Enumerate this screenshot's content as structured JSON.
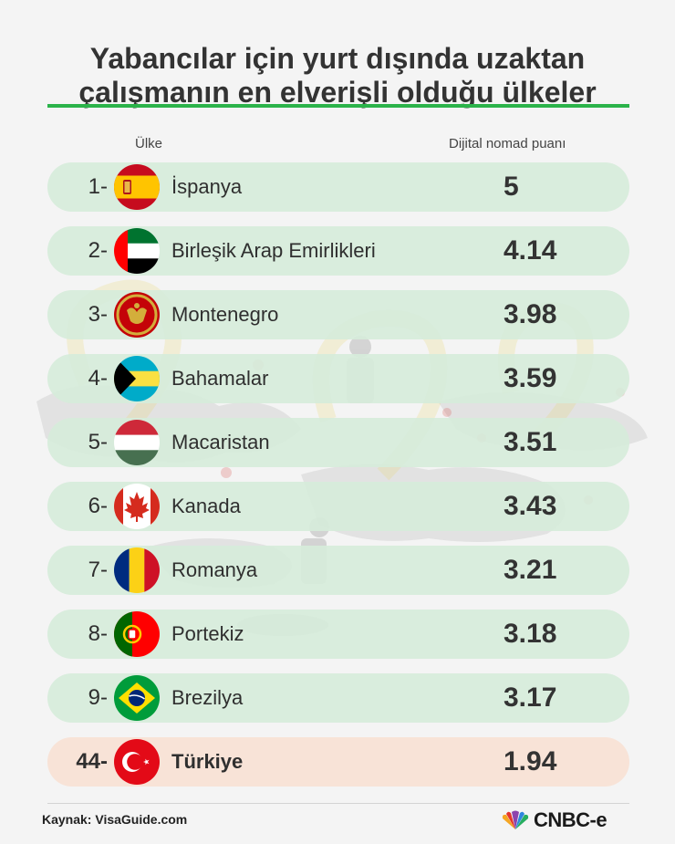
{
  "title_line1": "Yabancılar için yurt dışında uzaktan",
  "title_line2": "çalışmanın en elverişli olduğu ülkeler",
  "col_country": "Ülke",
  "col_score": "Dijital nomad puanı",
  "source": "Kaynak: VisaGuide.com",
  "brand": "CNBC-e",
  "colors": {
    "accent_green": "#2bb34a",
    "row_bg": "#d6ebda",
    "row_highlight_bg": "#f8e2d6"
  },
  "chart_data": {
    "type": "table",
    "columns": [
      "Ülke",
      "Dijital nomad puanı"
    ],
    "rows": [
      {
        "rank": "1-",
        "country": "İspanya",
        "score": "5",
        "flag": "spain-flag-icon"
      },
      {
        "rank": "2-",
        "country": "Birleşik Arap Emirlikleri",
        "score": "4.14",
        "flag": "uae-flag-icon"
      },
      {
        "rank": "3-",
        "country": "Montenegro",
        "score": "3.98",
        "flag": "montenegro-flag-icon"
      },
      {
        "rank": "4-",
        "country": "Bahamalar",
        "score": "3.59",
        "flag": "bahamas-flag-icon"
      },
      {
        "rank": "5-",
        "country": "Macaristan",
        "score": "3.51",
        "flag": "hungary-flag-icon"
      },
      {
        "rank": "6-",
        "country": "Kanada",
        "score": "3.43",
        "flag": "canada-flag-icon"
      },
      {
        "rank": "7-",
        "country": "Romanya",
        "score": "3.21",
        "flag": "romania-flag-icon"
      },
      {
        "rank": "8-",
        "country": "Portekiz",
        "score": "3.18",
        "flag": "portugal-flag-icon"
      },
      {
        "rank": "9-",
        "country": "Brezilya",
        "score": "3.17",
        "flag": "brazil-flag-icon"
      },
      {
        "rank": "44-",
        "country": "Türkiye",
        "score": "1.94",
        "flag": "turkey-flag-icon",
        "highlight": true
      }
    ]
  }
}
